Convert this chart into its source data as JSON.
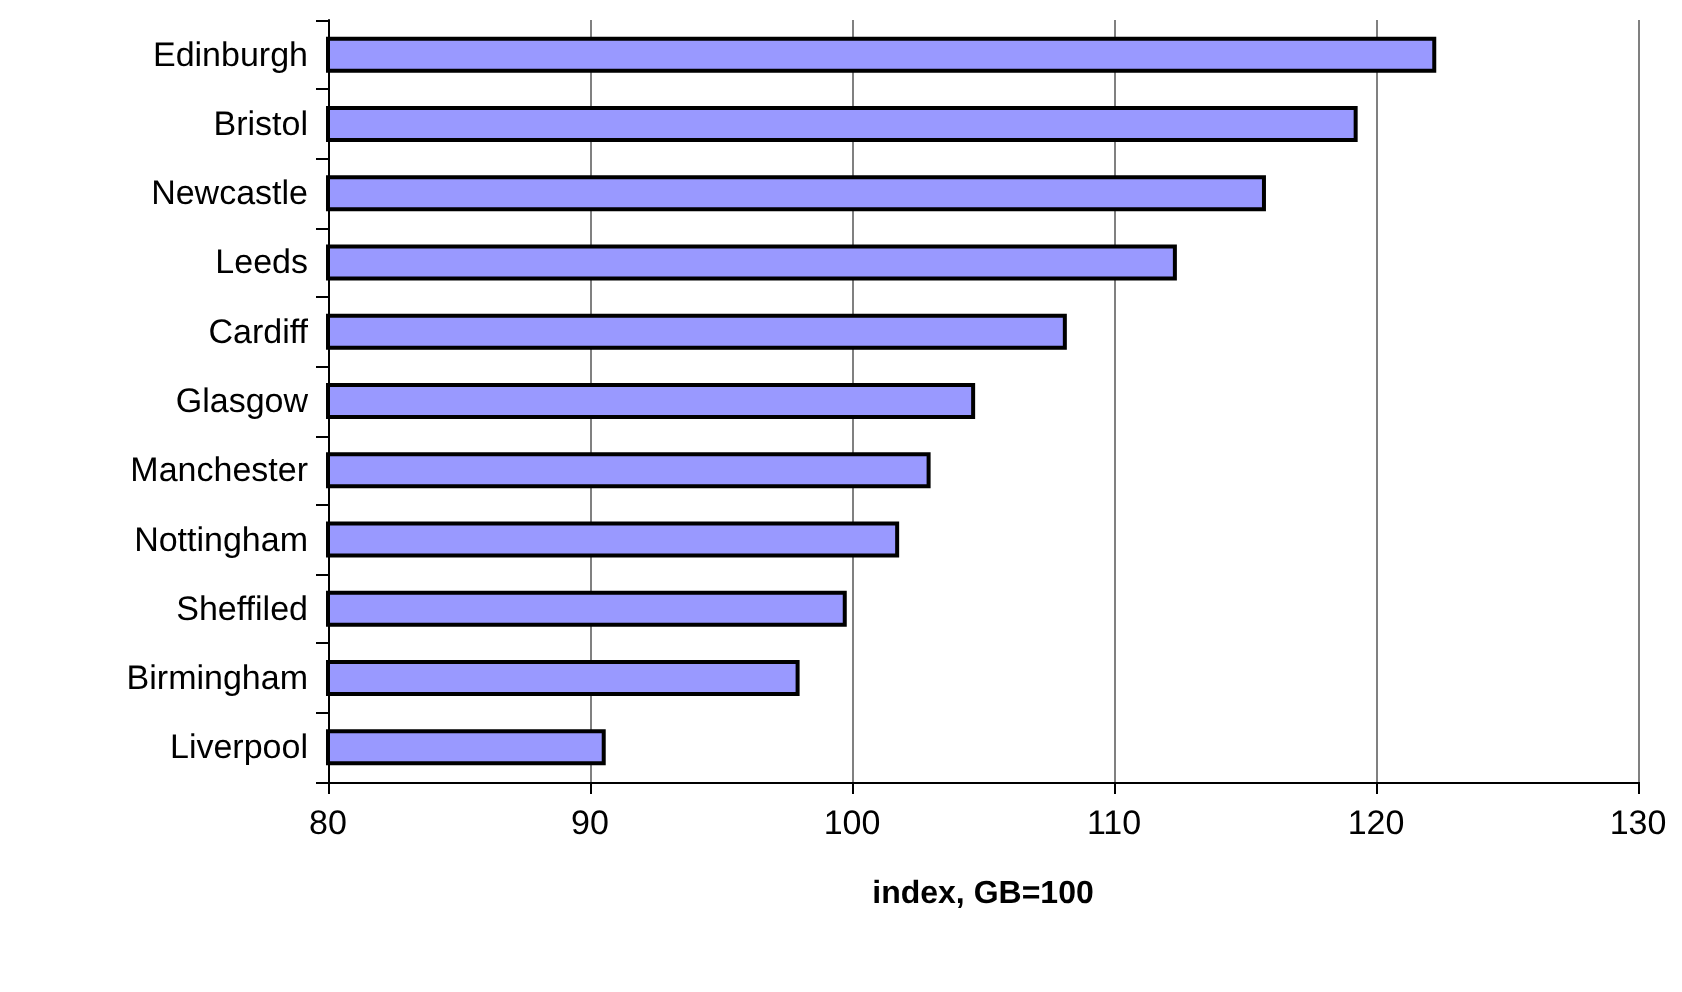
{
  "chart_data": {
    "type": "bar",
    "orientation": "horizontal",
    "xlabel": "index, GB=100",
    "categories": [
      "Edinburgh",
      "Bristol",
      "Newcastle",
      "Leeds",
      "Cardiff",
      "Glasgow",
      "Manchester",
      "Nottingham",
      "Sheffiled",
      "Birmingham",
      "Liverpool"
    ],
    "values": [
      122.3,
      119.3,
      115.8,
      112.4,
      108.2,
      104.7,
      103.0,
      101.8,
      99.8,
      98.0,
      90.6
    ],
    "color": "#9999ff",
    "xlim": [
      80,
      130
    ],
    "xticks": [
      80,
      90,
      100,
      110,
      120,
      130
    ],
    "grid": "x"
  }
}
